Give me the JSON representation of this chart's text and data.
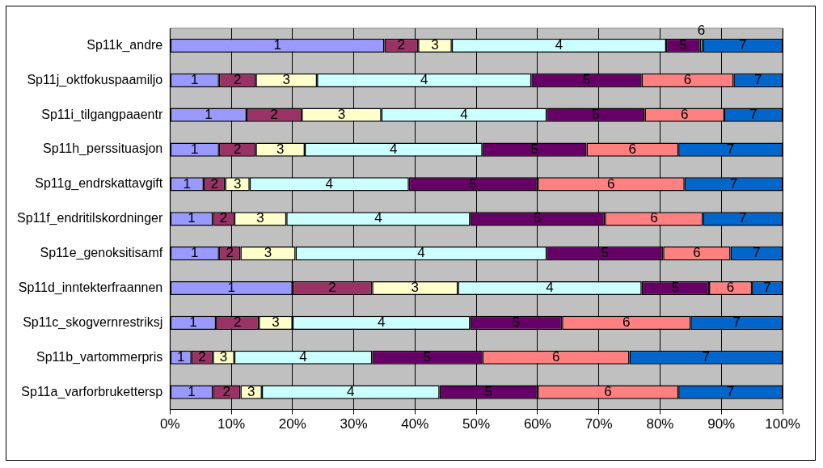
{
  "chart_data": {
    "type": "bar",
    "orientation": "horizontal",
    "stacked": true,
    "grid": "x",
    "legend": false,
    "categories": [
      "Sp11k_andre",
      "Sp11j_oktfokuspaamiljo",
      "Sp11i_tilgangpaaentr",
      "Sp11h_perssituasjon",
      "Sp11g_endrskattavgift",
      "Sp11f_endritilskordninger",
      "Sp11e_genoksitisamf",
      "Sp11d_inntekterfraannen",
      "Sp11c_skogvernrestriksj",
      "Sp11b_vartommerpris",
      "Sp11a_varforbrukettersp"
    ],
    "series": [
      {
        "name": "1",
        "color": "#9999ff",
        "values": [
          35,
          8,
          12.5,
          8,
          5.5,
          7,
          8,
          20,
          7.5,
          3.5,
          7
        ]
      },
      {
        "name": "2",
        "color": "#993366",
        "values": [
          5.5,
          6,
          9,
          6,
          3.5,
          3.5,
          3.5,
          13,
          7,
          3.5,
          4.5
        ]
      },
      {
        "name": "3",
        "color": "#ffffcc",
        "values": [
          5.5,
          10,
          13,
          8,
          4,
          8.5,
          9,
          14,
          5.5,
          3.5,
          3.5
        ]
      },
      {
        "name": "4",
        "color": "#ccffff",
        "values": [
          35,
          35,
          27,
          29,
          26,
          30,
          41,
          30,
          29,
          22.5,
          29
        ]
      },
      {
        "name": "5",
        "color": "#660066",
        "values": [
          5.5,
          18,
          16,
          17,
          21,
          22,
          19,
          11,
          15,
          18,
          16
        ]
      },
      {
        "name": "6",
        "color": "#ff8080",
        "values": [
          0.5,
          15,
          13,
          15,
          24,
          16,
          11,
          7,
          21,
          24,
          23
        ]
      },
      {
        "name": "7",
        "color": "#0066cc",
        "values": [
          13,
          8,
          9.5,
          17,
          16,
          13,
          8.5,
          5,
          15,
          25,
          17
        ]
      }
    ],
    "xlim": [
      0,
      100
    ],
    "xticks": [
      {
        "value": 0,
        "label": "0%"
      },
      {
        "value": 10,
        "label": "10%"
      },
      {
        "value": 20,
        "label": "20%"
      },
      {
        "value": 30,
        "label": "30%"
      },
      {
        "value": 40,
        "label": "40%"
      },
      {
        "value": 50,
        "label": "50%"
      },
      {
        "value": 60,
        "label": "60%"
      },
      {
        "value": 70,
        "label": "70%"
      },
      {
        "value": 80,
        "label": "80%"
      },
      {
        "value": 90,
        "label": "90%"
      },
      {
        "value": 100,
        "label": "100%"
      }
    ]
  }
}
